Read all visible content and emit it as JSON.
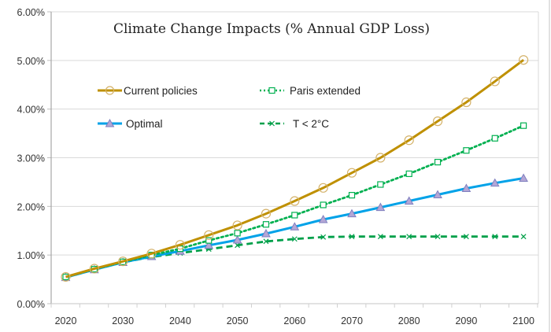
{
  "chart_data": {
    "type": "line",
    "title": "Climate Change Impacts (% Annual GDP Loss)",
    "xlabel": "",
    "ylabel": "",
    "x": [
      2020,
      2025,
      2030,
      2035,
      2040,
      2045,
      2050,
      2055,
      2060,
      2065,
      2070,
      2075,
      2080,
      2085,
      2090,
      2095,
      2100
    ],
    "x_tick_labels": [
      "2020",
      "2030",
      "2040",
      "2050",
      "2060",
      "2070",
      "2080",
      "2090",
      "2100"
    ],
    "y_tick_labels": [
      "0.00%",
      "1.00%",
      "2.00%",
      "3.00%",
      "4.00%",
      "5.00%",
      "6.00%"
    ],
    "ylim": [
      0,
      6
    ],
    "y_unit": "%",
    "grid": "horizontal",
    "legend_position": "top-left (inside, two columns)",
    "series": [
      {
        "name": "Current policies",
        "color": "#BF9000",
        "marker": "circle",
        "line_style": "solid",
        "values": [
          0.55,
          0.72,
          0.87,
          1.03,
          1.21,
          1.41,
          1.61,
          1.85,
          2.11,
          2.38,
          2.69,
          3.0,
          3.36,
          3.75,
          4.14,
          4.57,
          5.01
        ]
      },
      {
        "name": "Paris extended",
        "color": "#00B050",
        "marker": "square",
        "line_style": "dotted",
        "values": [
          0.55,
          0.71,
          0.86,
          1.0,
          1.13,
          1.3,
          1.45,
          1.63,
          1.82,
          2.03,
          2.23,
          2.45,
          2.67,
          2.91,
          3.15,
          3.4,
          3.66
        ]
      },
      {
        "name": "Optimal",
        "color": "#00A2E8",
        "marker": "triangle",
        "marker_fill": "#B4A7D6",
        "line_style": "solid",
        "values": [
          0.54,
          0.7,
          0.85,
          0.97,
          1.08,
          1.2,
          1.31,
          1.44,
          1.58,
          1.73,
          1.85,
          1.98,
          2.11,
          2.24,
          2.37,
          2.48,
          2.58
        ]
      },
      {
        "name": "T < 2°C",
        "color": "#00A04A",
        "marker": "x",
        "line_style": "dashed",
        "values": [
          0.54,
          0.7,
          0.85,
          0.96,
          1.04,
          1.12,
          1.2,
          1.28,
          1.33,
          1.37,
          1.38,
          1.38,
          1.38,
          1.38,
          1.38,
          1.38,
          1.38
        ]
      }
    ]
  }
}
